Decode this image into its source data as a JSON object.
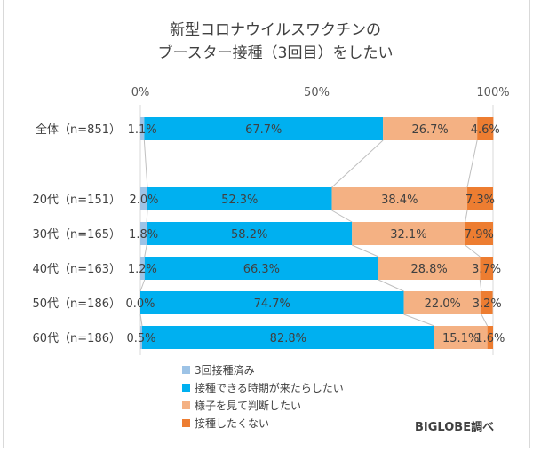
{
  "chart_data": {
    "type": "bar",
    "stacked": true,
    "orientation": "horizontal",
    "title_lines": [
      "新型コロナウイルスワクチンの",
      "ブースター接種（3回目）をしたい"
    ],
    "categories": [
      "全体（n=851）",
      "20代（n=151）",
      "30代（n=165）",
      "40代（n=163）",
      "50代（n=186）",
      "60代（n=186）"
    ],
    "xlim": [
      0,
      100
    ],
    "xticks": [
      "0%",
      "50%",
      "100%"
    ],
    "series": [
      {
        "name": "3回接種済み",
        "color": "#9dc3e6",
        "values": [
          1.1,
          2.0,
          1.8,
          1.2,
          0.0,
          0.5
        ]
      },
      {
        "name": "接種できる時期が来たらしたい",
        "color": "#00b0f0",
        "values": [
          67.7,
          52.3,
          58.2,
          66.3,
          74.7,
          82.8
        ]
      },
      {
        "name": "様子を見て判断したい",
        "color": "#f4b183",
        "values": [
          26.7,
          38.4,
          32.1,
          28.8,
          22.0,
          15.1
        ]
      },
      {
        "name": "接種したくない",
        "color": "#ed7d31",
        "values": [
          4.6,
          7.3,
          7.9,
          3.7,
          3.2,
          1.6
        ]
      }
    ],
    "legend_position": "bottom-left",
    "credit": "BIGLOBE調べ"
  }
}
